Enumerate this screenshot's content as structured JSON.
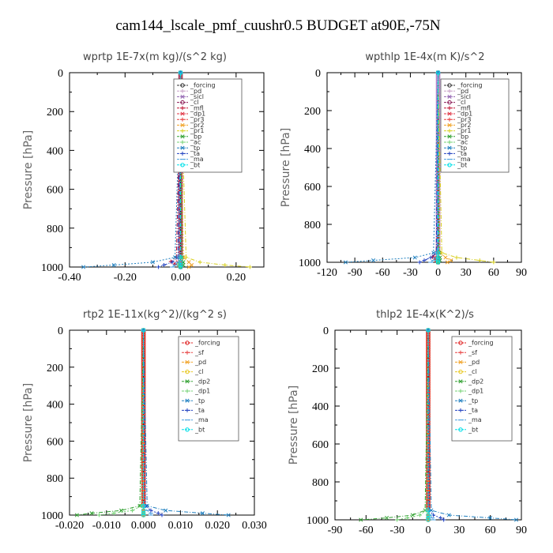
{
  "title": "cam144_lscale_pmf_cuushr0.5  BUDGET at90E,-75N",
  "chart_data": [
    {
      "type": "line",
      "title": "wprtp   1E-7x(m kg)/(s^2 kg)",
      "ylabel": "Pressure [hPa]",
      "xlim": [
        -0.4,
        0.3
      ],
      "ylim": [
        1000,
        0
      ],
      "xticks": [
        "-0.40",
        "-0.20",
        "0.00",
        "0.20"
      ],
      "xtick_values": [
        -0.4,
        -0.2,
        0,
        0.2
      ],
      "yticks": [
        "0",
        "200",
        "400",
        "600",
        "800",
        "1000"
      ],
      "ytick_values": [
        0,
        200,
        400,
        600,
        800,
        1000
      ],
      "minor_xticks": [
        -0.3,
        -0.1,
        0.1,
        0.3
      ],
      "legend_placement": "top-right",
      "column_color": "#aa3355",
      "series": [
        {
          "name": "_forcing",
          "color": "#333333",
          "marker": "o",
          "x": [
            0,
            0,
            0,
            0,
            0
          ],
          "y": [
            0,
            950,
            975,
            990,
            1000
          ]
        },
        {
          "name": "_pd",
          "color": "#c8a0c8",
          "marker": "+",
          "x": [
            0,
            0,
            0,
            0,
            0
          ],
          "y": [
            0,
            950,
            975,
            990,
            1000
          ]
        },
        {
          "name": "_sicl",
          "color": "#9060b0",
          "marker": "x",
          "x": [
            0,
            0,
            0,
            0,
            0
          ],
          "y": [
            0,
            950,
            975,
            990,
            1000
          ]
        },
        {
          "name": "_cl",
          "color": "#8b1a55",
          "marker": "o",
          "x": [
            0,
            0,
            0,
            0,
            0
          ],
          "y": [
            0,
            950,
            975,
            990,
            1000
          ]
        },
        {
          "name": "_mfl",
          "color": "#c01030",
          "marker": "+",
          "x": [
            0,
            -0.015,
            -0.035,
            -0.02,
            0
          ],
          "y": [
            0,
            950,
            972,
            985,
            1000
          ]
        },
        {
          "name": "_dp1",
          "color": "#e03040",
          "marker": "x",
          "x": [
            0,
            -0.005,
            -0.01,
            -0.005,
            0
          ],
          "y": [
            0,
            950,
            975,
            990,
            1000
          ]
        },
        {
          "name": "_pr3",
          "color": "#e84040",
          "marker": "+",
          "x": [
            0,
            0,
            0.005,
            0.003,
            0
          ],
          "y": [
            0,
            950,
            975,
            990,
            1000
          ]
        },
        {
          "name": "_pr2",
          "color": "#f0a020",
          "marker": "x",
          "x": [
            0,
            0.01,
            0.03,
            0.04,
            0.03
          ],
          "y": [
            0,
            950,
            975,
            990,
            1000
          ]
        },
        {
          "name": "_pr1",
          "color": "#d8d020",
          "marker": "+",
          "x": [
            0,
            0.02,
            0.07,
            0.16,
            0.25
          ],
          "y": [
            0,
            950,
            975,
            990,
            1000
          ]
        },
        {
          "name": "_bp",
          "color": "#30a030",
          "marker": "x",
          "x": [
            0,
            0.005,
            0.01,
            0.01,
            0
          ],
          "y": [
            0,
            950,
            975,
            990,
            1000
          ]
        },
        {
          "name": "_ac",
          "color": "#70d070",
          "marker": "+",
          "x": [
            0,
            0,
            -0.005,
            -0.01,
            0
          ],
          "y": [
            0,
            950,
            975,
            990,
            1000
          ]
        },
        {
          "name": "_tp",
          "color": "#2080c0",
          "marker": "x",
          "x": [
            0,
            -0.02,
            -0.1,
            -0.24,
            -0.35
          ],
          "y": [
            0,
            950,
            975,
            990,
            1000
          ]
        },
        {
          "name": "_ta",
          "color": "#2040c0",
          "marker": "+",
          "x": [
            0,
            -0.01,
            -0.03,
            -0.06,
            -0.08
          ],
          "y": [
            0,
            950,
            975,
            990,
            1000
          ]
        },
        {
          "name": "_ma",
          "color": "#4aa0e0",
          "marker": "-",
          "x": [
            0,
            -0.005,
            -0.01,
            -0.02,
            -0.03
          ],
          "y": [
            0,
            950,
            975,
            990,
            1000
          ]
        },
        {
          "name": "_bt",
          "color": "#00e0e8",
          "marker": "o",
          "x": [
            0,
            0,
            0,
            0,
            0
          ],
          "y": [
            0,
            950,
            975,
            990,
            1000
          ]
        }
      ]
    },
    {
      "type": "line",
      "title": "wpthlp   1E-4x(m K)/s^2",
      "ylabel": "Pressure [hPa]",
      "xlim": [
        -120,
        90
      ],
      "ylim": [
        1000,
        0
      ],
      "xticks": [
        "-120",
        "-90",
        "-60",
        "-30",
        "0",
        "30",
        "60",
        "90"
      ],
      "xtick_values": [
        -120,
        -90,
        -60,
        -30,
        0,
        30,
        60,
        90
      ],
      "yticks": [
        "0",
        "200",
        "400",
        "600",
        "800",
        "1000"
      ],
      "ytick_values": [
        0,
        200,
        400,
        600,
        800,
        1000
      ],
      "minor_xticks": [
        -105,
        -75,
        -45,
        -15,
        15,
        45,
        75
      ],
      "legend_placement": "top-right",
      "column_color": "#b080c8",
      "series": [
        {
          "name": "_forcing",
          "color": "#333333",
          "marker": "o",
          "x": [
            0,
            0,
            0,
            0,
            0
          ],
          "y": [
            0,
            950,
            975,
            990,
            1000
          ]
        },
        {
          "name": "_pd",
          "color": "#c8a0c8",
          "marker": "+",
          "x": [
            0,
            0,
            0,
            0,
            0
          ],
          "y": [
            0,
            950,
            975,
            990,
            1000
          ]
        },
        {
          "name": "_sicl",
          "color": "#9060b0",
          "marker": "x",
          "x": [
            0,
            0,
            0,
            0,
            0
          ],
          "y": [
            0,
            950,
            975,
            990,
            1000
          ]
        },
        {
          "name": "_cl",
          "color": "#8b1a55",
          "marker": "o",
          "x": [
            0,
            0,
            0,
            0,
            0
          ],
          "y": [
            0,
            950,
            975,
            990,
            1000
          ]
        },
        {
          "name": "_mfl",
          "color": "#c01030",
          "marker": "+",
          "x": [
            0,
            -2,
            -6,
            -3,
            0
          ],
          "y": [
            0,
            950,
            972,
            985,
            1000
          ]
        },
        {
          "name": "_dp1",
          "color": "#e03040",
          "marker": "x",
          "x": [
            0,
            -1,
            -3,
            -2,
            0
          ],
          "y": [
            0,
            950,
            975,
            990,
            1000
          ]
        },
        {
          "name": "_pr3",
          "color": "#e84040",
          "marker": "+",
          "x": [
            0,
            0,
            1,
            1,
            0
          ],
          "y": [
            0,
            950,
            975,
            990,
            1000
          ]
        },
        {
          "name": "_pr2",
          "color": "#f0a020",
          "marker": "x",
          "x": [
            0,
            2,
            8,
            14,
            10
          ],
          "y": [
            0,
            950,
            975,
            990,
            1000
          ]
        },
        {
          "name": "_pr1",
          "color": "#d8d020",
          "marker": "+",
          "x": [
            0,
            4,
            20,
            45,
            60
          ],
          "y": [
            0,
            950,
            975,
            990,
            1000
          ]
        },
        {
          "name": "_bp",
          "color": "#30a030",
          "marker": "x",
          "x": [
            0,
            1,
            2,
            2,
            0
          ],
          "y": [
            0,
            950,
            975,
            990,
            1000
          ]
        },
        {
          "name": "_ac",
          "color": "#70d070",
          "marker": "+",
          "x": [
            0,
            0,
            -1,
            -2,
            0
          ],
          "y": [
            0,
            950,
            975,
            990,
            1000
          ]
        },
        {
          "name": "_tp",
          "color": "#2080c0",
          "marker": "x",
          "x": [
            0,
            -5,
            -25,
            -70,
            -100
          ],
          "y": [
            0,
            950,
            975,
            990,
            1000
          ]
        },
        {
          "name": "_ta",
          "color": "#2040c0",
          "marker": "+",
          "x": [
            0,
            -2,
            -8,
            -15,
            -20
          ],
          "y": [
            0,
            950,
            975,
            990,
            1000
          ]
        },
        {
          "name": "_ma",
          "color": "#4aa0e0",
          "marker": "-",
          "x": [
            0,
            -1,
            -3,
            -5,
            -8
          ],
          "y": [
            0,
            950,
            975,
            990,
            1000
          ]
        },
        {
          "name": "_bt",
          "color": "#00e0e8",
          "marker": "o",
          "x": [
            0,
            0,
            0,
            0,
            0
          ],
          "y": [
            0,
            950,
            975,
            990,
            1000
          ]
        }
      ]
    },
    {
      "type": "line",
      "title": "rtp2   1E-11x(kg^2)/(kg^2 s)",
      "ylabel": "Pressure [hPa]",
      "xlim": [
        -0.02,
        0.03
      ],
      "ylim": [
        1000,
        0
      ],
      "xticks": [
        "-0.020",
        "-0.010",
        "0.000",
        "0.010",
        "0.020",
        "0.030"
      ],
      "xtick_values": [
        -0.02,
        -0.01,
        0,
        0.01,
        0.02,
        0.03
      ],
      "yticks": [
        "0",
        "200",
        "400",
        "600",
        "800",
        "1000"
      ],
      "ytick_values": [
        0,
        200,
        400,
        600,
        800,
        1000
      ],
      "minor_xticks": [
        -0.015,
        -0.005,
        0.005,
        0.015,
        0.025
      ],
      "legend_placement": "top-right",
      "column_color": "#e03020",
      "series": [
        {
          "name": "_forcing",
          "color": "#e02020",
          "marker": "o",
          "x": [
            0,
            0,
            0,
            0,
            0
          ],
          "y": [
            0,
            950,
            975,
            990,
            1000
          ]
        },
        {
          "name": "_sf",
          "color": "#e84040",
          "marker": "+",
          "x": [
            0,
            0,
            0,
            0,
            0
          ],
          "y": [
            0,
            950,
            975,
            990,
            1000
          ]
        },
        {
          "name": "_pd",
          "color": "#f0a020",
          "marker": "x",
          "x": [
            0,
            0,
            0,
            0,
            0
          ],
          "y": [
            0,
            950,
            975,
            990,
            1000
          ]
        },
        {
          "name": "_cl",
          "color": "#e8c820",
          "marker": "o",
          "x": [
            0,
            0,
            0,
            0,
            0
          ],
          "y": [
            0,
            950,
            975,
            990,
            1000
          ]
        },
        {
          "name": "_dp2",
          "color": "#30a030",
          "marker": "x",
          "x": [
            0,
            -0.001,
            -0.006,
            -0.014,
            -0.018
          ],
          "y": [
            0,
            950,
            975,
            990,
            1000
          ]
        },
        {
          "name": "_dp1",
          "color": "#70d070",
          "marker": "+",
          "x": [
            0,
            -0.0005,
            -0.003,
            -0.008,
            -0.012
          ],
          "y": [
            0,
            950,
            975,
            990,
            1000
          ]
        },
        {
          "name": "_tp",
          "color": "#2080c0",
          "marker": "x",
          "x": [
            0,
            0.001,
            0.006,
            0.016,
            0.023
          ],
          "y": [
            0,
            950,
            975,
            990,
            1000
          ]
        },
        {
          "name": "_ta",
          "color": "#2040c0",
          "marker": "+",
          "x": [
            0,
            0.0005,
            0.002,
            0.004,
            0.005
          ],
          "y": [
            0,
            950,
            975,
            990,
            1000
          ]
        },
        {
          "name": "_ma",
          "color": "#4aa0e0",
          "marker": "-",
          "x": [
            0,
            0,
            0.001,
            0.002,
            0.002
          ],
          "y": [
            0,
            950,
            975,
            990,
            1000
          ]
        },
        {
          "name": "_bt",
          "color": "#00e0e8",
          "marker": "o",
          "x": [
            0,
            0,
            0,
            0,
            0
          ],
          "y": [
            0,
            950,
            975,
            990,
            1000
          ]
        }
      ]
    },
    {
      "type": "line",
      "title": "thlp2   1E-4x(K^2)/s",
      "ylabel": "Pressure [hPa]",
      "xlim": [
        -90,
        90
      ],
      "ylim": [
        1000,
        0
      ],
      "xticks": [
        "-90",
        "-60",
        "-30",
        "0",
        "30",
        "60",
        "90"
      ],
      "xtick_values": [
        -90,
        -60,
        -30,
        0,
        30,
        60,
        90
      ],
      "yticks": [
        "0",
        "200",
        "400",
        "600",
        "800",
        "1000"
      ],
      "ytick_values": [
        0,
        200,
        400,
        600,
        800,
        1000
      ],
      "minor_xticks": [
        -75,
        -45,
        -15,
        15,
        45,
        75
      ],
      "legend_placement": "top-right",
      "column_color": "#e03020",
      "series": [
        {
          "name": "_forcing",
          "color": "#e02020",
          "marker": "o",
          "x": [
            0,
            0,
            0,
            0,
            0
          ],
          "y": [
            0,
            950,
            975,
            990,
            1000
          ]
        },
        {
          "name": "_sf",
          "color": "#e84040",
          "marker": "+",
          "x": [
            0,
            0,
            0,
            0,
            0
          ],
          "y": [
            0,
            950,
            975,
            990,
            1000
          ]
        },
        {
          "name": "_pd",
          "color": "#f0a020",
          "marker": "x",
          "x": [
            0,
            0,
            0,
            0,
            0
          ],
          "y": [
            0,
            950,
            975,
            990,
            1000
          ]
        },
        {
          "name": "_cl",
          "color": "#e8c820",
          "marker": "o",
          "x": [
            0,
            0,
            0,
            0,
            0
          ],
          "y": [
            0,
            950,
            975,
            990,
            1000
          ]
        },
        {
          "name": "_dp2",
          "color": "#30a030",
          "marker": "x",
          "x": [
            0,
            -3,
            -15,
            -40,
            -65
          ],
          "y": [
            0,
            950,
            975,
            990,
            1000
          ]
        },
        {
          "name": "_dp1",
          "color": "#70d070",
          "marker": "+",
          "x": [
            0,
            -2,
            -8,
            -20,
            -30
          ],
          "y": [
            0,
            950,
            975,
            990,
            1000
          ]
        },
        {
          "name": "_tp",
          "color": "#2080c0",
          "marker": "x",
          "x": [
            0,
            3,
            20,
            60,
            85
          ],
          "y": [
            0,
            950,
            975,
            990,
            1000
          ]
        },
        {
          "name": "_ta",
          "color": "#2040c0",
          "marker": "+",
          "x": [
            0,
            1,
            5,
            12,
            15
          ],
          "y": [
            0,
            950,
            975,
            990,
            1000
          ]
        },
        {
          "name": "_ma",
          "color": "#4aa0e0",
          "marker": "-",
          "x": [
            0,
            0,
            2,
            4,
            5
          ],
          "y": [
            0,
            950,
            975,
            990,
            1000
          ]
        },
        {
          "name": "_bt",
          "color": "#00e0e8",
          "marker": "o",
          "x": [
            0,
            0,
            0,
            0,
            0
          ],
          "y": [
            0,
            950,
            975,
            990,
            1000
          ]
        }
      ]
    }
  ]
}
